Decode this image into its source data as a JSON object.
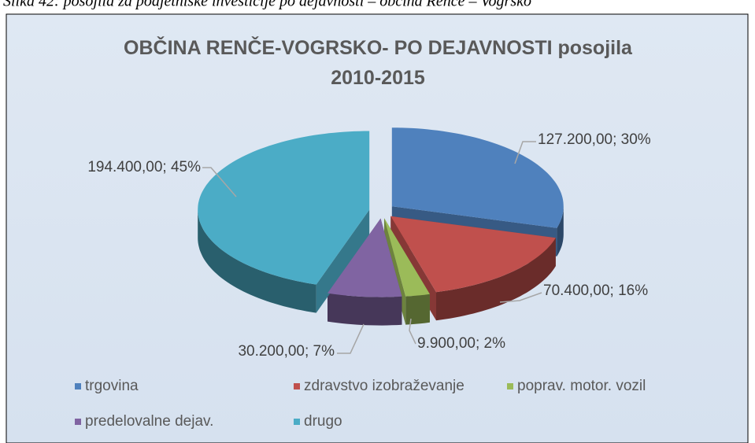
{
  "caption": "Slika 42: posojila za podjetniške investicije po dejavnosti – občina Renče – Vogrsko",
  "chart_data": {
    "type": "pie3d",
    "title": "OBČINA RENČE-VOGRSKO- PO DEJAVNOSTI posojila 2010-2015",
    "categories": [
      "trgovina",
      "zdravstvo izobraževanje",
      "poprav. motor. vozil",
      "predelovalne dejav.",
      "drugo"
    ],
    "values": [
      127200,
      70400,
      9900,
      30200,
      194400
    ],
    "value_labels": [
      "127.200,00; 30%",
      "70.400,00; 16%",
      "9.900,00; 2%",
      "30.200,00; 7%",
      "194.400,00; 45%"
    ],
    "colors": [
      "#4f81bd",
      "#c0504d",
      "#9bbb59",
      "#8064a2",
      "#4bacc6"
    ],
    "legend": "bottom"
  }
}
